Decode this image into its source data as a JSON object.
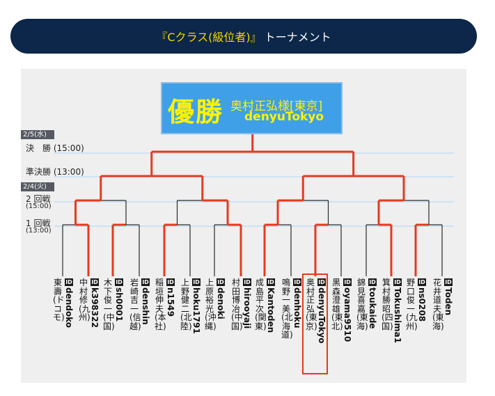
{
  "banner": {
    "title_quoted": "『Cクラス(級位者)』",
    "title_rest": "トーナメント"
  },
  "champion": {
    "label": "優勝",
    "name": "奥村正弘様[東京]",
    "account": "denyuTokyo"
  },
  "rounds": {
    "date1": "2/5(水)",
    "final": "決　勝 (15:00)",
    "semi": "準決勝 (13:00)",
    "date2": "2/4(火)",
    "second": "2 回戦",
    "second_time": "(15:00)",
    "first": "1 回戦",
    "first_time": "(13:00)"
  },
  "id_badge": "ID",
  "players": [
    {
      "name": "東　壽(ドコモ)",
      "id": "dendoko"
    },
    {
      "name": "中村　修(九州)",
      "id": "k398322"
    },
    {
      "name": "木下俊一(中国)",
      "id": "sh0001"
    },
    {
      "name": "岩崎吉一(信越)",
      "id": "denshin"
    },
    {
      "name": "稲垣伸夫(本社)",
      "id": "n1549"
    },
    {
      "name": "上野健二(北陸)",
      "id": "hoku1791"
    },
    {
      "name": "上原裕光(沖縄)",
      "id": "denoki"
    },
    {
      "name": "村田博冶(中国)",
      "id": "hirooyaji"
    },
    {
      "name": "成島平次(関東)",
      "id": "Kantoden"
    },
    {
      "name": "鳴野一美(北海道)",
      "id": "denhoku"
    },
    {
      "name": "奥村正弘(東京)",
      "id": "denyuTokyo"
    },
    {
      "name": "黒森澄雄(東北)",
      "id": "oyama9510"
    },
    {
      "name": "錦見喜嘉(東海)",
      "id": "toukaide"
    },
    {
      "name": "箕村勝昭(四国)",
      "id": "Tokushima1"
    },
    {
      "name": "野口俊一(九州)",
      "id": "ns0208"
    },
    {
      "name": "花井道夫(東海)",
      "id": "Toden"
    }
  ],
  "colors": {
    "banner_bg": "#0c2749",
    "accent_yellow": "#f5d800",
    "winner_line": "#e53a20",
    "champion_box": "#3fa0e8",
    "panel_bg": "#efefef"
  }
}
